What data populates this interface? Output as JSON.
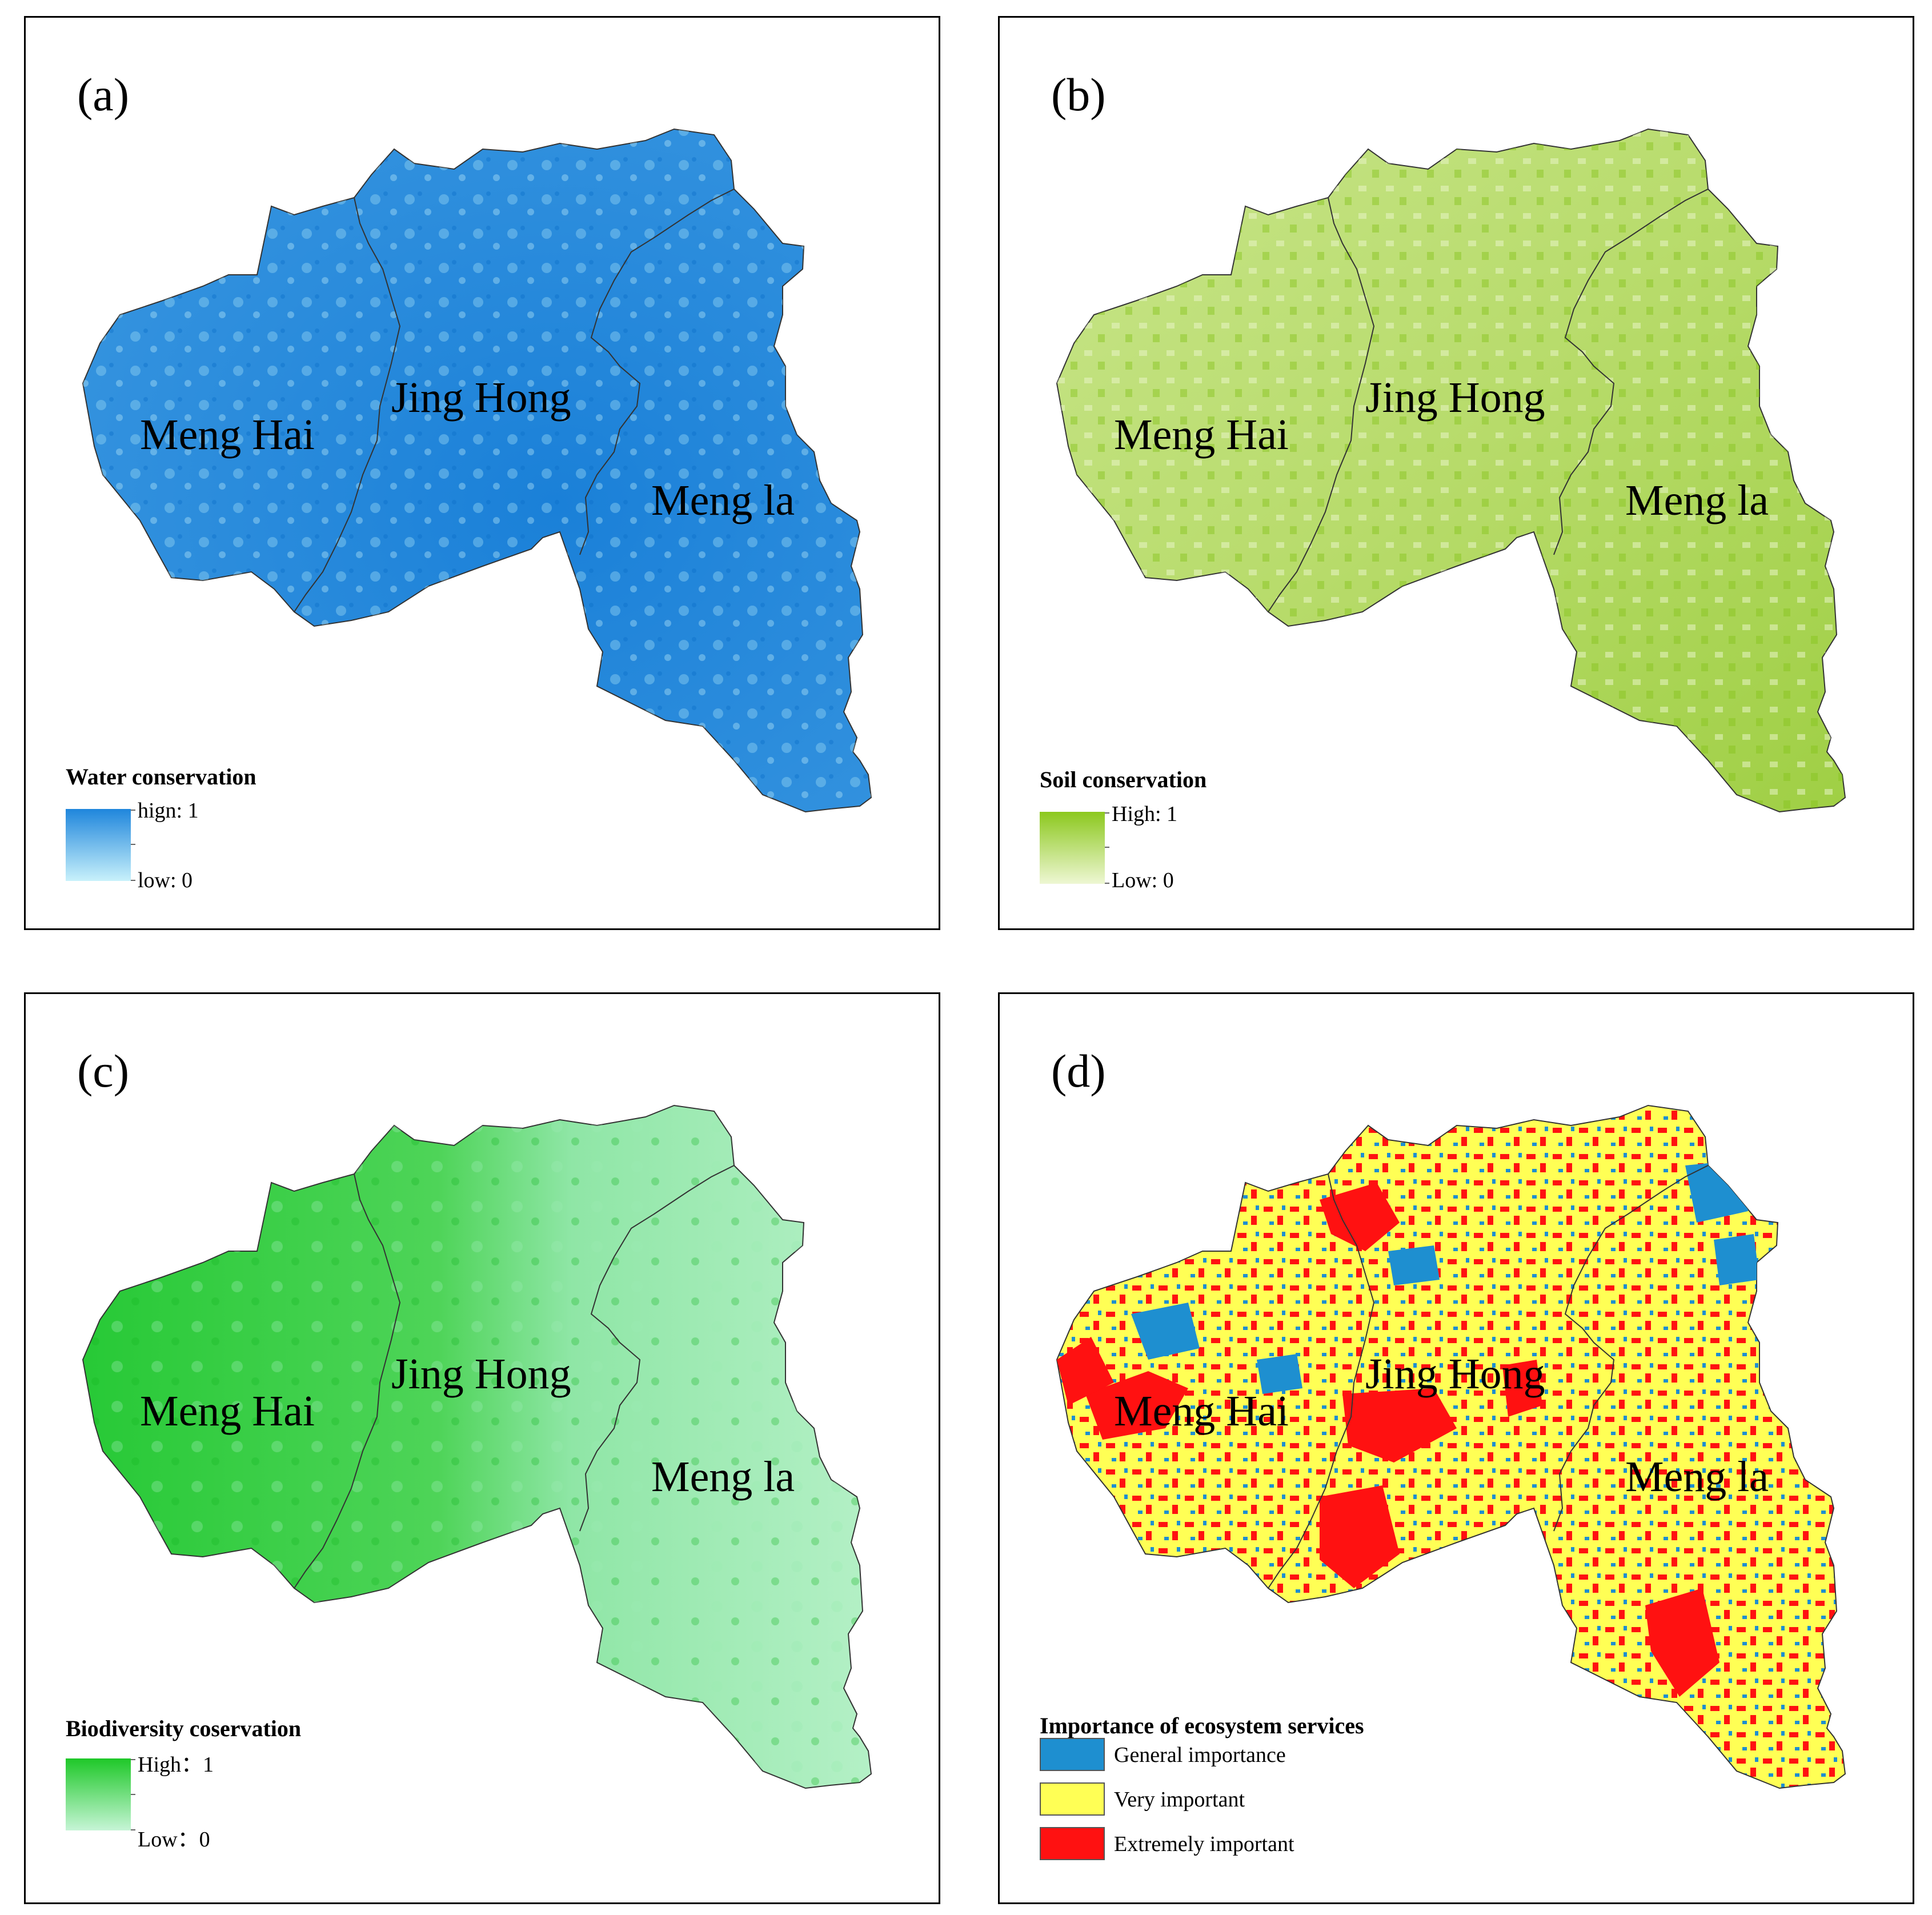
{
  "panels": [
    {
      "label": "(a)",
      "legend_title": "Water conservation",
      "high_label": "hign: 1",
      "low_label": "low: 0",
      "colors": {
        "high": "#1f86dc",
        "low": "#c8f1fb",
        "border": "#333333"
      }
    },
    {
      "label": "(b)",
      "legend_title": "Soil conservation",
      "high_label": "High: 1",
      "low_label": "Low: 0",
      "colors": {
        "high": "#8cc81e",
        "low": "#eef7d3",
        "border": "#333333"
      }
    },
    {
      "label": "(c)",
      "legend_title": "Biodiversity coservation",
      "high_label": "High：1",
      "low_label": "Low：0",
      "colors": {
        "high": "#1ec828",
        "low": "#c6f5d6",
        "border": "#333333"
      }
    },
    {
      "label": "(d)",
      "legend_title": "Importance of ecosystem services",
      "classes": [
        {
          "label": "General importance",
          "color": "#1e8fd0"
        },
        {
          "label": "Very important",
          "color": "#ffff55"
        },
        {
          "label": "Extremely important",
          "color": "#ff1111"
        }
      ]
    }
  ],
  "regions": [
    "Meng Hai",
    "Jing Hong",
    "Meng la"
  ]
}
